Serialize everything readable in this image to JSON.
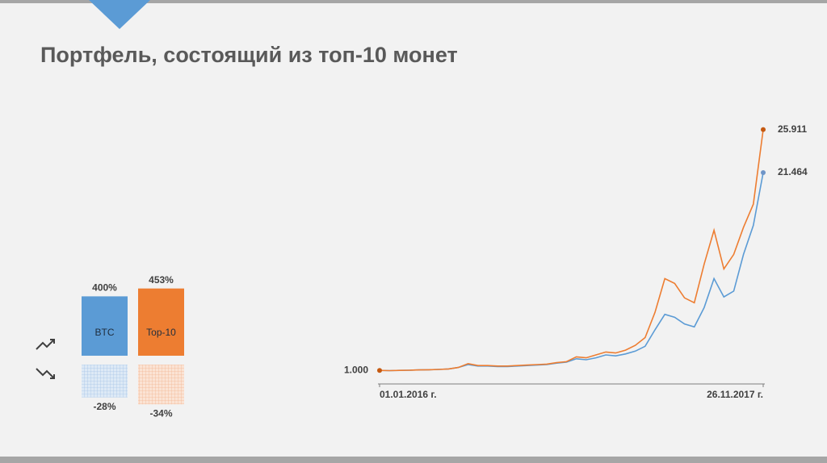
{
  "title": "Портфель, состоящий из топ-10 монет",
  "chart_data": [
    {
      "type": "line",
      "categories": [
        "01.01.2016 г.",
        null,
        null,
        null,
        null,
        null,
        null,
        null,
        null,
        null,
        null,
        null,
        null,
        null,
        null,
        null,
        null,
        null,
        null,
        null,
        null,
        null,
        null,
        null,
        null,
        null,
        null,
        null,
        null,
        null,
        null,
        null,
        null,
        null,
        null,
        null,
        null,
        null,
        null,
        "26.11.2017 г."
      ],
      "ylim": [
        -0.4,
        26.8
      ],
      "series": [
        {
          "color": "#5b9bd5",
          "values": [
            1,
            0.98,
            1.0,
            1.02,
            1.05,
            1.07,
            1.1,
            1.15,
            1.3,
            1.6,
            1.45,
            1.45,
            1.4,
            1.4,
            1.45,
            1.5,
            1.55,
            1.6,
            1.75,
            1.85,
            2.2,
            2.1,
            2.3,
            2.6,
            2.5,
            2.7,
            3.0,
            3.5,
            5.2,
            6.8,
            6.5,
            5.8,
            5.5,
            7.5,
            10.5,
            8.6,
            9.2,
            13.0,
            16.0,
            21.464
          ]
        },
        {
          "color": "#ed7d31",
          "values": [
            1,
            0.98,
            1.0,
            1.02,
            1.05,
            1.07,
            1.1,
            1.15,
            1.3,
            1.7,
            1.5,
            1.5,
            1.45,
            1.45,
            1.5,
            1.55,
            1.6,
            1.65,
            1.8,
            1.9,
            2.4,
            2.3,
            2.6,
            2.9,
            2.8,
            3.1,
            3.6,
            4.4,
            7.0,
            10.5,
            10.0,
            8.5,
            8.0,
            12.0,
            15.5,
            11.5,
            13.0,
            15.8,
            18.2,
            25.911
          ],
          "value_labels": [
            "1.000",
            null,
            null,
            null,
            null,
            null,
            null,
            null,
            null,
            null,
            null,
            null,
            null,
            null,
            null,
            null,
            null,
            null,
            null,
            null,
            null,
            null,
            null,
            null,
            null,
            null,
            null,
            null,
            null,
            null,
            null,
            null,
            null,
            null,
            null,
            null,
            null,
            null,
            null,
            null
          ]
        }
      ]
    },
    {
      "type": "bar",
      "categories": [
        "BTC",
        "Top-10"
      ],
      "series": [
        {
          "colors": [
            "#5b9bd5",
            "#ed7d31"
          ],
          "values": [
            400,
            453
          ],
          "value_labels": [
            "400%",
            "453%"
          ]
        },
        {
          "colors": [
            "#5b9bd5",
            "#ed7d31"
          ],
          "values": [
            -28,
            -34
          ],
          "value_labels": [
            "-28%",
            "-34%"
          ]
        }
      ]
    }
  ]
}
